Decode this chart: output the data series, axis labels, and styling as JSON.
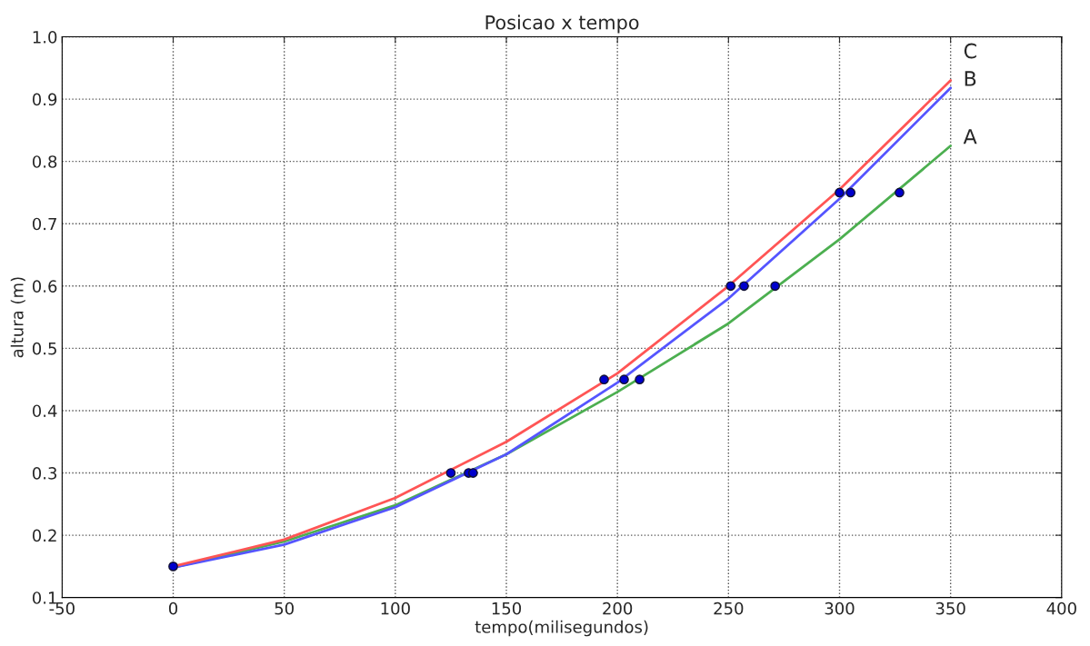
{
  "chart_data": {
    "type": "line",
    "title": "Posicao x tempo",
    "xlabel": "tempo(milisegundos)",
    "ylabel": "altura (m)",
    "xlim": [
      -50,
      400
    ],
    "xticks": [
      -50,
      0,
      50,
      100,
      150,
      200,
      250,
      300,
      350,
      400
    ],
    "ylim": [
      0.1,
      1.0
    ],
    "yticks": [
      {
        "value": 0.1,
        "label": "0.1"
      },
      {
        "value": 0.2,
        "label": "0.2"
      },
      {
        "value": 0.3,
        "label": "0.3"
      },
      {
        "value": 0.4,
        "label": "0.4"
      },
      {
        "value": 0.5,
        "label": "0.5"
      },
      {
        "value": 0.6,
        "label": "0.6"
      },
      {
        "value": 0.7,
        "label": "0.7"
      },
      {
        "value": 0.8,
        "label": "0.8"
      },
      {
        "value": 0.9,
        "label": "0.9"
      },
      {
        "value": 1.0,
        "label": "1.0"
      }
    ],
    "grid": true,
    "legend": false,
    "series": [
      {
        "name": "A",
        "color": "#4caf50",
        "x": [
          0,
          50,
          100,
          150,
          200,
          250,
          300,
          350
        ],
        "values": [
          0.148,
          0.19,
          0.248,
          0.33,
          0.43,
          0.54,
          0.675,
          0.825
        ]
      },
      {
        "name": "B",
        "color": "#5555ff",
        "x": [
          0,
          50,
          100,
          150,
          200,
          250,
          300,
          350
        ],
        "values": [
          0.148,
          0.185,
          0.245,
          0.33,
          0.445,
          0.58,
          0.74,
          0.918
        ]
      },
      {
        "name": "C",
        "color": "#ff5555",
        "x": [
          0,
          50,
          100,
          150,
          200,
          250,
          300,
          350
        ],
        "values": [
          0.15,
          0.193,
          0.26,
          0.35,
          0.46,
          0.6,
          0.755,
          0.93
        ]
      },
      {
        "type": "scatter",
        "color": "#0000cc",
        "marker": "circle",
        "x": [
          0,
          125,
          133,
          135,
          194,
          203,
          210,
          251,
          257,
          271,
          300,
          305,
          327
        ],
        "values": [
          0.15,
          0.3,
          0.3,
          0.3,
          0.45,
          0.45,
          0.45,
          0.6,
          0.6,
          0.6,
          0.75,
          0.75,
          0.75
        ]
      }
    ]
  }
}
